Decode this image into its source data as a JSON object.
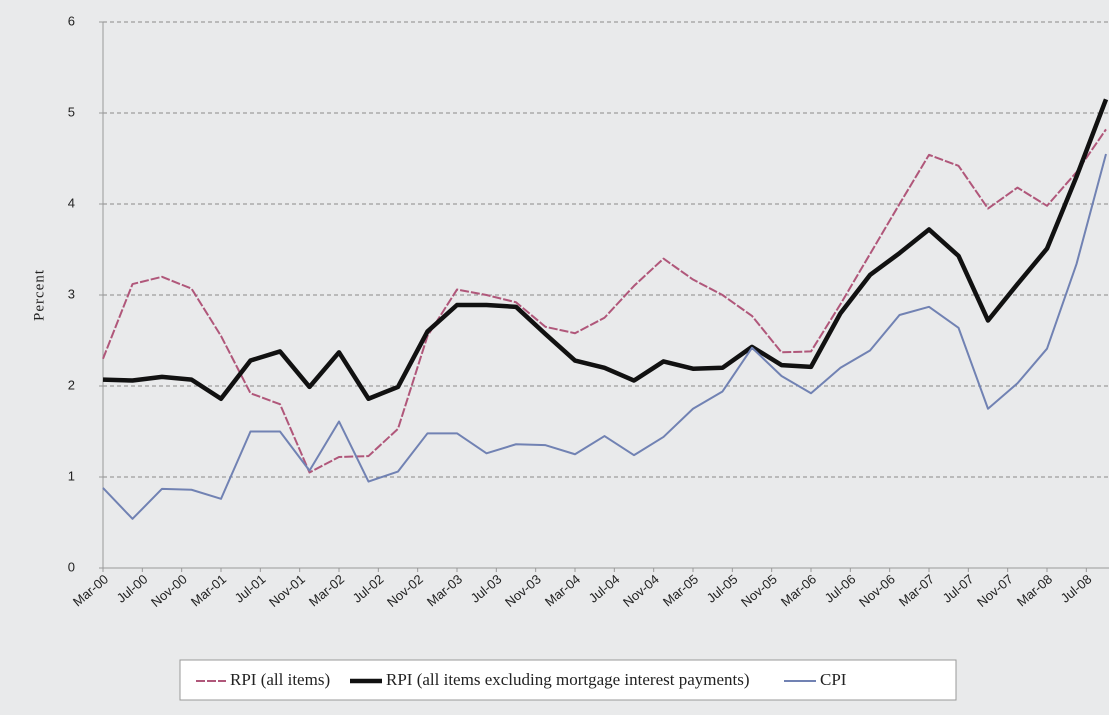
{
  "chart_data": {
    "type": "line",
    "y_label": "Percent",
    "x": [
      0,
      3,
      6,
      9,
      12,
      15,
      18,
      21,
      24,
      27,
      30,
      33,
      36,
      39,
      42,
      45,
      48,
      51,
      54,
      57,
      60,
      63,
      66,
      69,
      72,
      75,
      78,
      81,
      84,
      87,
      90,
      93,
      96,
      99,
      102
    ],
    "xlim": [
      0,
      102
    ],
    "xticks": [
      {
        "value": 0,
        "label": "Mar-00"
      },
      {
        "value": 4,
        "label": "Jul-00"
      },
      {
        "value": 8,
        "label": "Nov-00"
      },
      {
        "value": 12,
        "label": "Mar-01"
      },
      {
        "value": 16,
        "label": "Jul-01"
      },
      {
        "value": 20,
        "label": "Nov-01"
      },
      {
        "value": 24,
        "label": "Mar-02"
      },
      {
        "value": 28,
        "label": "Jul-02"
      },
      {
        "value": 32,
        "label": "Nov-02"
      },
      {
        "value": 36,
        "label": "Mar-03"
      },
      {
        "value": 40,
        "label": "Jul-03"
      },
      {
        "value": 44,
        "label": "Nov-03"
      },
      {
        "value": 48,
        "label": "Mar-04"
      },
      {
        "value": 52,
        "label": "Jul-04"
      },
      {
        "value": 56,
        "label": "Nov-04"
      },
      {
        "value": 60,
        "label": "Mar-05"
      },
      {
        "value": 64,
        "label": "Jul-05"
      },
      {
        "value": 68,
        "label": "Nov-05"
      },
      {
        "value": 72,
        "label": "Mar-06"
      },
      {
        "value": 76,
        "label": "Jul-06"
      },
      {
        "value": 80,
        "label": "Nov-06"
      },
      {
        "value": 84,
        "label": "Mar-07"
      },
      {
        "value": 88,
        "label": "Jul-07"
      },
      {
        "value": 92,
        "label": "Nov-07"
      },
      {
        "value": 96,
        "label": "Mar-08"
      },
      {
        "value": 100,
        "label": "Jul-08"
      }
    ],
    "ylim": [
      0,
      6
    ],
    "yticks": [
      0,
      1,
      2,
      3,
      4,
      5,
      6
    ],
    "grid": true,
    "legend": "bottom",
    "series": [
      {
        "name": "RPI (all items)",
        "color": "#b0577a",
        "dashed": true,
        "values": [
          2.3,
          3.12,
          3.2,
          3.07,
          2.55,
          1.92,
          1.8,
          1.05,
          1.22,
          1.23,
          1.53,
          2.55,
          3.06,
          3.0,
          2.92,
          2.65,
          2.58,
          2.75,
          3.1,
          3.4,
          3.17,
          3.0,
          2.77,
          2.37,
          2.38,
          2.9,
          3.45,
          4.0,
          4.54,
          4.42,
          3.95,
          4.18,
          3.98,
          4.35,
          4.82
        ]
      },
      {
        "name": "RPI (all items excluding mortgage interest payments)",
        "color": "#111111",
        "bold": true,
        "values": [
          2.07,
          2.06,
          2.1,
          2.07,
          1.86,
          2.28,
          2.38,
          1.99,
          2.37,
          1.86,
          1.99,
          2.6,
          2.89,
          2.89,
          2.87,
          2.57,
          2.28,
          2.2,
          2.06,
          2.27,
          2.19,
          2.2,
          2.43,
          2.23,
          2.21,
          2.8,
          3.22,
          3.46,
          3.72,
          3.43,
          2.72,
          3.12,
          3.51,
          4.3,
          5.15
        ]
      },
      {
        "name": "CPI",
        "color": "#7182b3",
        "values": [
          0.88,
          0.54,
          0.87,
          0.86,
          0.76,
          1.5,
          1.5,
          1.07,
          1.61,
          0.95,
          1.06,
          1.48,
          1.48,
          1.26,
          1.36,
          1.35,
          1.25,
          1.45,
          1.24,
          1.44,
          1.75,
          1.94,
          2.42,
          2.11,
          1.92,
          2.2,
          2.39,
          2.78,
          2.87,
          2.64,
          1.75,
          2.03,
          2.41,
          3.34,
          4.55
        ]
      }
    ]
  }
}
